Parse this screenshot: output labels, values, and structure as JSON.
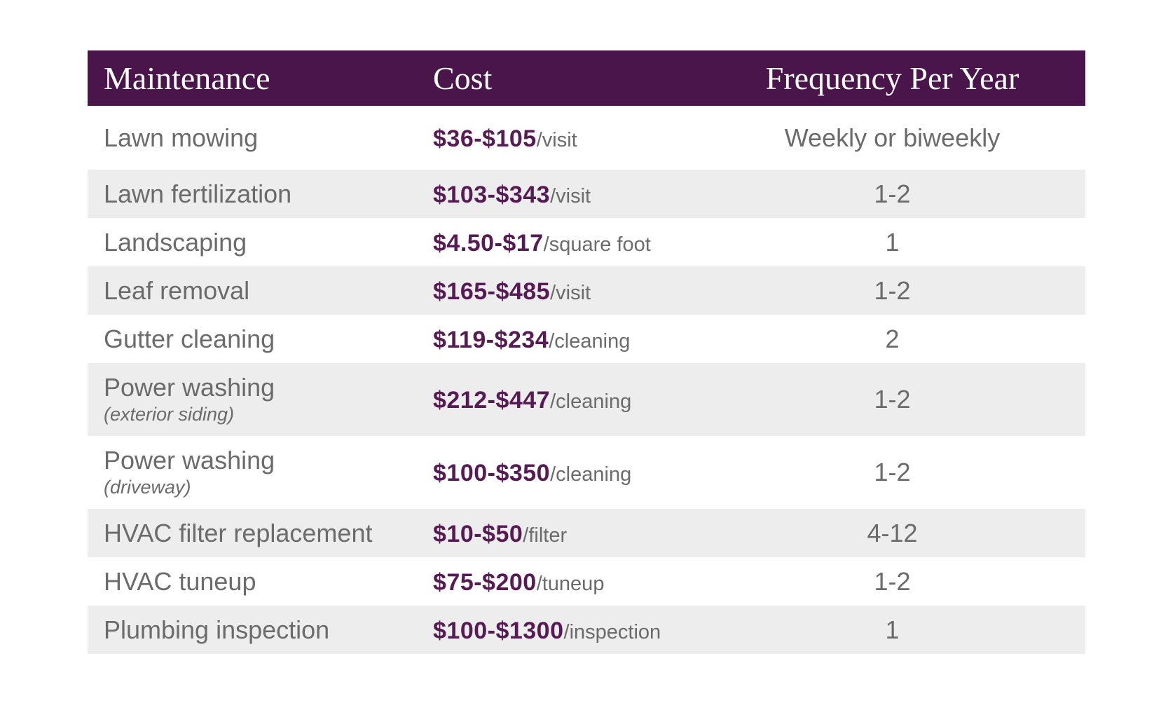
{
  "colors": {
    "header_bg": "#4A154A",
    "header_text": "#FFFFFF",
    "cost_value_text": "#571A54",
    "body_text": "#6B6B6B",
    "row_alt_bg": "#EDEDED",
    "row_bg": "#FFFFFF"
  },
  "chart_data": {
    "type": "table",
    "title": "",
    "columns": [
      "Maintenance",
      "Cost",
      "Frequency Per Year"
    ],
    "rows": [
      {
        "maintenance": "Lawn mowing",
        "sub": "",
        "cost_value": "$36-$105",
        "cost_unit": "/visit",
        "frequency": "Weekly or biweekly"
      },
      {
        "maintenance": "Lawn fertilization",
        "sub": "",
        "cost_value": "$103-$343",
        "cost_unit": "/visit",
        "frequency": "1-2"
      },
      {
        "maintenance": "Landscaping",
        "sub": "",
        "cost_value": "$4.50-$17",
        "cost_unit": "/square foot",
        "frequency": "1"
      },
      {
        "maintenance": "Leaf removal",
        "sub": "",
        "cost_value": "$165-$485",
        "cost_unit": "/visit",
        "frequency": "1-2"
      },
      {
        "maintenance": "Gutter cleaning",
        "sub": "",
        "cost_value": "$119-$234",
        "cost_unit": "/cleaning",
        "frequency": "2"
      },
      {
        "maintenance": "Power washing",
        "sub": "(exterior siding)",
        "cost_value": "$212-$447",
        "cost_unit": "/cleaning",
        "frequency": "1-2"
      },
      {
        "maintenance": "Power washing",
        "sub": "(driveway)",
        "cost_value": "$100-$350",
        "cost_unit": "/cleaning",
        "frequency": "1-2"
      },
      {
        "maintenance": "HVAC filter replacement",
        "sub": "",
        "cost_value": "$10-$50",
        "cost_unit": "/filter",
        "frequency": "4-12"
      },
      {
        "maintenance": "HVAC tuneup",
        "sub": "",
        "cost_value": "$75-$200",
        "cost_unit": "/tuneup",
        "frequency": "1-2"
      },
      {
        "maintenance": "Plumbing inspection",
        "sub": "",
        "cost_value": "$100-$1300",
        "cost_unit": "/inspection",
        "frequency": "1"
      }
    ]
  }
}
